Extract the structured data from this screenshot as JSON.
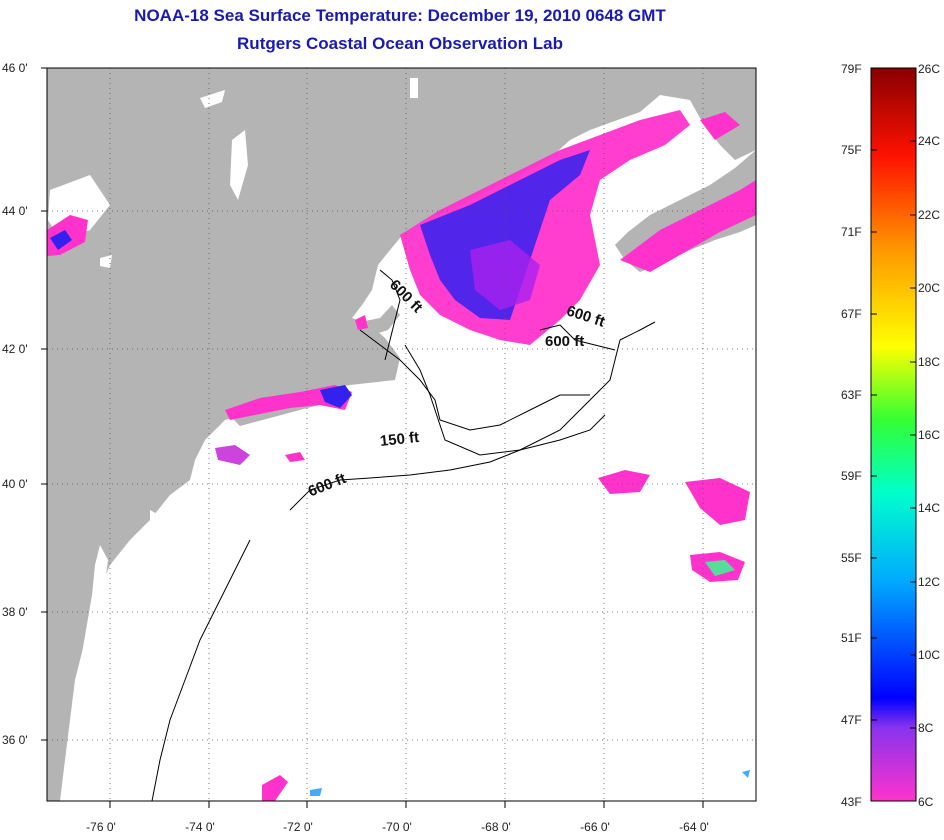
{
  "title": "NOAA-18 Sea Surface Temperature:  December 19, 2010 0648 GMT",
  "subtitle": "Rutgers Coastal Ocean Observation Lab",
  "latitude_labels": [
    "46 0'",
    "44 0'",
    "42 0'",
    "40 0'",
    "38 0'",
    "36 0'"
  ],
  "longitude_labels": [
    "-76 0'",
    "-74 0'",
    "-72 0'",
    "-70 0'",
    "-68 0'",
    "-66 0'",
    "-64 0'"
  ],
  "depth_contours": [
    {
      "label": "600 ft"
    },
    {
      "label": "600 ft"
    },
    {
      "label": "600 ft"
    },
    {
      "label": "150 ft"
    },
    {
      "label": "600 ft"
    }
  ],
  "colorbar": {
    "fahrenheit_labels": [
      "79F",
      "75F",
      "71F",
      "67F",
      "63F",
      "59F",
      "55F",
      "51F",
      "47F",
      "43F"
    ],
    "celsius_labels": [
      "26C",
      "24C",
      "22C",
      "20C",
      "18C",
      "16C",
      "14C",
      "12C",
      "10C",
      "8C",
      "6C"
    ],
    "range_c": [
      6,
      26
    ],
    "range_f": [
      43,
      79
    ]
  },
  "colors": {
    "land": "#b4b4b4",
    "ocean_no_data": "#ffffff",
    "title": "#1a1ab0",
    "cold_magenta": "#ff33cc",
    "cold_blue": "#2222ee"
  }
}
